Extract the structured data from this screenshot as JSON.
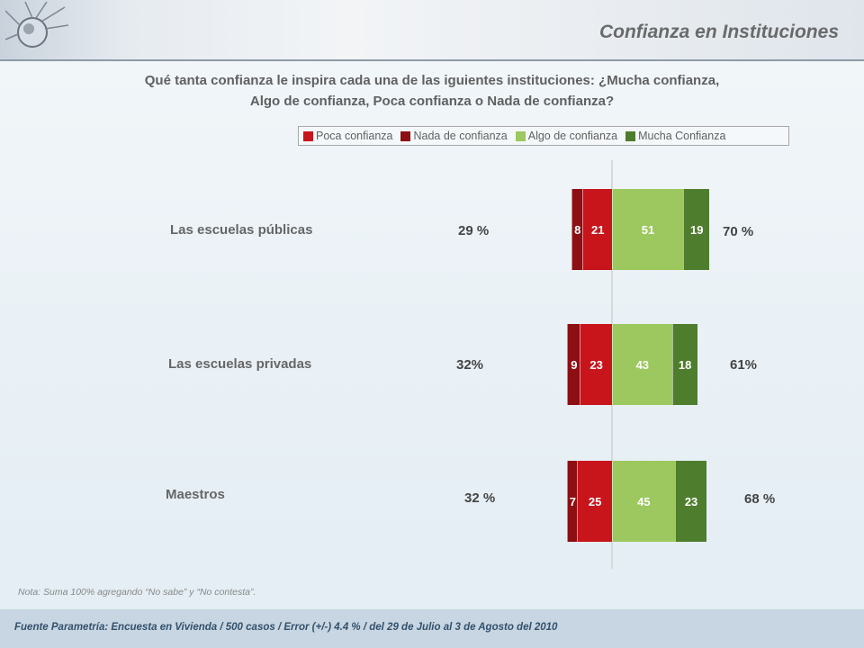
{
  "header": {
    "title": "Confianza en Instituciones"
  },
  "question": "Qué tanta confianza le inspira cada una de las iguientes instituciones: ¿Mucha confianza, Algo de confianza, Poca confianza o Nada de confianza?",
  "chart_data": {
    "type": "bar",
    "orientation": "horizontal-diverging-stacked",
    "title": "Confianza en Instituciones",
    "categories": [
      "Las escuelas públicas",
      "Las escuelas privadas",
      "Maestros"
    ],
    "series": [
      {
        "name": "Nada de confianza",
        "side": "negative",
        "color": "#8c0f14",
        "values": [
          8,
          9,
          7
        ]
      },
      {
        "name": "Poca confianza",
        "side": "negative",
        "color": "#c8141b",
        "values": [
          21,
          23,
          25
        ]
      },
      {
        "name": "Algo de confianza",
        "side": "positive",
        "color": "#9cc85f",
        "values": [
          51,
          43,
          45
        ]
      },
      {
        "name": "Mucha Confianza",
        "side": "positive",
        "color": "#4f7d2e",
        "values": [
          19,
          18,
          23
        ]
      }
    ],
    "negative_totals": [
      "29 %",
      "32%",
      "32 %"
    ],
    "positive_totals": [
      "70 %",
      "61%",
      "68 %"
    ],
    "legend": [
      "Poca confianza",
      "Nada de confianza",
      "Algo de confianza",
      "Mucha Confianza"
    ],
    "legend_colors": [
      "#c8141b",
      "#8c0f14",
      "#9cc85f",
      "#4f7d2e"
    ],
    "legend_position": "top",
    "grid": false
  },
  "note": "Nota: Suma 100%  agregando “No sabe” y “No contesta”.",
  "footer": "Fuente Parametría: Encuesta en Vivienda /  500 casos / Error (+/-) 4.4 % / del 29 de Julio al 3 de Agosto del 2010"
}
